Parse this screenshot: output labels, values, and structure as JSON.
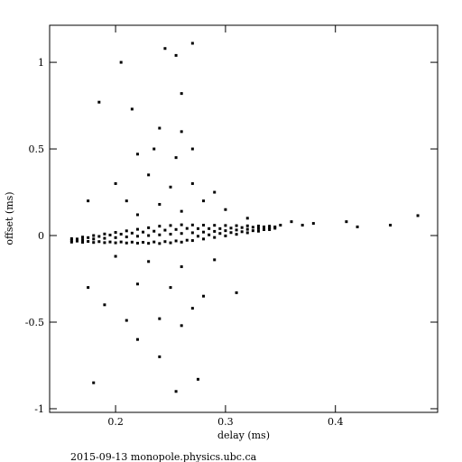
{
  "chart_data": {
    "type": "scatter",
    "x_label": "delay (ms)",
    "y_label": "offset (ms)",
    "footer": "2015-09-13 monopole.physics.ubc.ca",
    "color": "#000000",
    "xlim": [
      0.14,
      0.493
    ],
    "ylim": [
      -1.021,
      1.214
    ],
    "xticks": [
      0.2,
      0.3,
      0.4
    ],
    "yticks": [
      -1,
      -0.5,
      0,
      0.5,
      1
    ],
    "x": [
      0.16,
      0.16,
      0.16,
      0.17,
      0.17,
      0.17,
      0.18,
      0.18,
      0.18,
      0.19,
      0.19,
      0.19,
      0.2,
      0.2,
      0.2,
      0.21,
      0.21,
      0.21,
      0.22,
      0.22,
      0.22,
      0.23,
      0.23,
      0.23,
      0.24,
      0.24,
      0.24,
      0.25,
      0.25,
      0.25,
      0.26,
      0.26,
      0.26,
      0.27,
      0.27,
      0.27,
      0.28,
      0.28,
      0.28,
      0.29,
      0.29,
      0.29,
      0.3,
      0.3,
      0.3,
      0.31,
      0.31,
      0.31,
      0.32,
      0.32,
      0.32,
      0.33,
      0.33,
      0.33,
      0.34,
      0.34,
      0.34,
      0.165,
      0.165,
      0.175,
      0.175,
      0.185,
      0.185,
      0.195,
      0.195,
      0.205,
      0.205,
      0.215,
      0.215,
      0.225,
      0.225,
      0.235,
      0.235,
      0.245,
      0.245,
      0.255,
      0.255,
      0.265,
      0.265,
      0.275,
      0.275,
      0.285,
      0.285,
      0.295,
      0.295,
      0.305,
      0.305,
      0.315,
      0.315,
      0.325,
      0.325,
      0.335,
      0.335,
      0.345,
      0.345,
      0.245,
      0.27,
      0.255,
      0.205,
      0.185,
      0.26,
      0.215,
      0.24,
      0.26,
      0.235,
      0.27,
      0.22,
      0.255,
      0.2,
      0.23,
      0.25,
      0.27,
      0.29,
      0.21,
      0.24,
      0.28,
      0.175,
      0.3,
      0.22,
      0.26,
      0.32,
      0.36,
      0.38,
      0.41,
      0.42,
      0.45,
      0.475,
      0.37,
      0.35,
      0.2,
      0.23,
      0.26,
      0.29,
      0.175,
      0.22,
      0.25,
      0.28,
      0.19,
      0.27,
      0.24,
      0.21,
      0.26,
      0.31,
      0.24,
      0.275,
      0.18,
      0.255,
      0.22
    ],
    "values": [
      -0.038,
      -0.028,
      -0.018,
      -0.039,
      -0.024,
      -0.009,
      -0.04,
      -0.02,
      0.0,
      -0.041,
      -0.016,
      0.009,
      -0.042,
      -0.012,
      0.018,
      -0.043,
      -0.008,
      0.027,
      -0.044,
      -0.004,
      0.036,
      -0.045,
      0,
      0.045,
      -0.046,
      0.004,
      0.054,
      -0.042,
      0.008,
      0.058,
      -0.038,
      0.012,
      0.062,
      -0.029,
      0.016,
      0.061,
      -0.02,
      0.02,
      0.06,
      -0.011,
      0.024,
      0.059,
      -0.002,
      0.028,
      0.058,
      0.007,
      0.032,
      0.057,
      0.016,
      0.036,
      0.056,
      0.025,
      0.04,
      0.055,
      0.034,
      0.044,
      0.054,
      -0.032,
      -0.02,
      -0.034,
      -0.012,
      -0.035,
      -0.005,
      -0.037,
      0.003,
      -0.037,
      0.008,
      -0.038,
      0.014,
      -0.039,
      0.02,
      -0.037,
      0.025,
      -0.035,
      0.031,
      -0.031,
      0.035,
      -0.027,
      0.041,
      -0.004,
      0.04,
      0.004,
      0.04,
      0.012,
      0.04,
      0.017,
      0.043,
      0.022,
      0.046,
      0.028,
      0.048,
      0.034,
      0.05,
      0.042,
      0.05,
      1.08,
      1.11,
      1.04,
      1.0,
      0.77,
      0.82,
      0.73,
      0.62,
      0.6,
      0.5,
      0.5,
      0.47,
      0.45,
      0.3,
      0.35,
      0.28,
      0.3,
      0.25,
      0.2,
      0.18,
      0.2,
      0.2,
      0.15,
      0.12,
      0.14,
      0.1,
      0.08,
      0.07,
      0.08,
      0.05,
      0.06,
      0.115,
      0.06,
      0.06,
      -0.12,
      -0.15,
      -0.18,
      -0.14,
      -0.3,
      -0.28,
      -0.3,
      -0.35,
      -0.4,
      -0.42,
      -0.48,
      -0.49,
      -0.52,
      -0.33,
      -0.7,
      -0.83,
      -0.85,
      -0.9,
      -0.6
    ]
  }
}
